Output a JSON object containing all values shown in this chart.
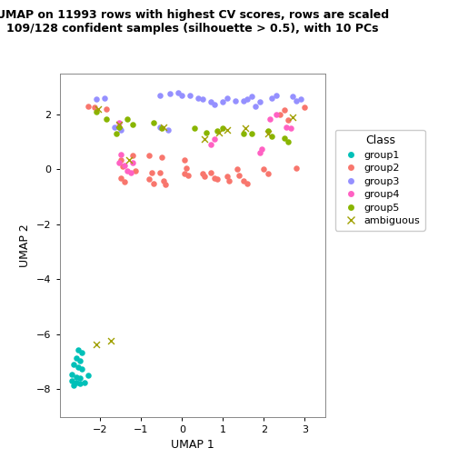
{
  "title": "UMAP on 11993 rows with highest CV scores, rows are scaled\n109/128 confident samples (silhouette > 0.5), with 10 PCs",
  "xlabel": "UMAP 1",
  "ylabel": "UMAP 2",
  "xlim": [
    -3.0,
    3.5
  ],
  "ylim": [
    -9.0,
    3.5
  ],
  "xticks": [
    -2,
    -1,
    0,
    1,
    2,
    3
  ],
  "yticks": [
    -8,
    -6,
    -4,
    -2,
    0,
    2
  ],
  "group_colors": {
    "group1": "#00C0B8",
    "group2": "#F8766D",
    "group3": "#9590FF",
    "group4": "#FF61C3",
    "group5": "#89B500",
    "ambiguous": "#A0A000"
  },
  "points": {
    "group1": [
      [
        -2.55,
        -6.55
      ],
      [
        -2.45,
        -6.65
      ],
      [
        -2.6,
        -6.85
      ],
      [
        -2.5,
        -6.95
      ],
      [
        -2.65,
        -7.1
      ],
      [
        -2.55,
        -7.2
      ],
      [
        -2.45,
        -7.25
      ],
      [
        -2.7,
        -7.45
      ],
      [
        -2.6,
        -7.55
      ],
      [
        -2.5,
        -7.6
      ],
      [
        -2.7,
        -7.7
      ],
      [
        -2.6,
        -7.75
      ],
      [
        -2.5,
        -7.8
      ],
      [
        -2.4,
        -7.75
      ],
      [
        -2.65,
        -7.85
      ],
      [
        -2.3,
        -7.5
      ]
    ],
    "group2": [
      [
        -2.3,
        2.3
      ],
      [
        -2.15,
        2.25
      ],
      [
        -1.85,
        2.2
      ],
      [
        -1.5,
        0.35
      ],
      [
        -1.45,
        0.1
      ],
      [
        -1.5,
        -0.3
      ],
      [
        -1.4,
        -0.45
      ],
      [
        -1.2,
        0.5
      ],
      [
        -1.15,
        -0.05
      ],
      [
        -0.8,
        0.5
      ],
      [
        -0.75,
        -0.1
      ],
      [
        -0.8,
        -0.35
      ],
      [
        -0.7,
        -0.5
      ],
      [
        -0.5,
        0.45
      ],
      [
        -0.55,
        -0.1
      ],
      [
        -0.45,
        -0.4
      ],
      [
        -0.4,
        -0.55
      ],
      [
        0.05,
        0.35
      ],
      [
        0.1,
        0.05
      ],
      [
        0.05,
        -0.15
      ],
      [
        0.15,
        -0.2
      ],
      [
        0.5,
        -0.15
      ],
      [
        0.55,
        -0.25
      ],
      [
        0.7,
        -0.1
      ],
      [
        0.8,
        -0.3
      ],
      [
        0.85,
        -0.35
      ],
      [
        1.1,
        -0.25
      ],
      [
        1.15,
        -0.4
      ],
      [
        1.35,
        0.0
      ],
      [
        1.4,
        -0.2
      ],
      [
        1.5,
        -0.4
      ],
      [
        1.6,
        -0.5
      ],
      [
        2.0,
        0.0
      ],
      [
        2.1,
        -0.15
      ],
      [
        2.4,
        2.0
      ],
      [
        2.5,
        2.15
      ],
      [
        2.6,
        1.8
      ],
      [
        2.8,
        0.05
      ],
      [
        3.0,
        2.25
      ]
    ],
    "group3": [
      [
        -2.1,
        2.55
      ],
      [
        -1.9,
        2.6
      ],
      [
        -0.55,
        2.7
      ],
      [
        -0.3,
        2.75
      ],
      [
        -0.1,
        2.8
      ],
      [
        0.0,
        2.7
      ],
      [
        0.2,
        2.7
      ],
      [
        0.4,
        2.6
      ],
      [
        0.5,
        2.55
      ],
      [
        0.7,
        2.45
      ],
      [
        0.8,
        2.35
      ],
      [
        1.0,
        2.45
      ],
      [
        1.1,
        2.6
      ],
      [
        1.3,
        2.5
      ],
      [
        1.5,
        2.5
      ],
      [
        1.6,
        2.55
      ],
      [
        1.7,
        2.65
      ],
      [
        1.8,
        2.3
      ],
      [
        1.9,
        2.45
      ],
      [
        2.2,
        2.6
      ],
      [
        2.3,
        2.7
      ],
      [
        2.7,
        2.65
      ],
      [
        2.8,
        2.5
      ],
      [
        2.9,
        2.55
      ],
      [
        -0.55,
        1.55
      ],
      [
        -0.35,
        1.45
      ],
      [
        -1.65,
        1.55
      ],
      [
        -1.5,
        1.45
      ]
    ],
    "group4": [
      [
        -1.55,
        1.7
      ],
      [
        -1.5,
        0.55
      ],
      [
        -1.55,
        0.25
      ],
      [
        -1.4,
        0.15
      ],
      [
        -1.35,
        -0.05
      ],
      [
        2.3,
        2.0
      ],
      [
        2.15,
        1.85
      ],
      [
        2.55,
        1.55
      ],
      [
        2.65,
        1.5
      ],
      [
        1.9,
        0.6
      ],
      [
        1.95,
        0.75
      ],
      [
        0.8,
        1.1
      ],
      [
        0.7,
        0.9
      ],
      [
        -1.2,
        0.25
      ],
      [
        -1.25,
        -0.1
      ]
    ],
    "group5": [
      [
        -2.1,
        2.1
      ],
      [
        -1.85,
        1.85
      ],
      [
        -1.55,
        1.55
      ],
      [
        -1.6,
        1.3
      ],
      [
        -1.35,
        1.85
      ],
      [
        -1.2,
        1.65
      ],
      [
        -0.7,
        1.7
      ],
      [
        -0.5,
        1.5
      ],
      [
        0.3,
        1.5
      ],
      [
        0.6,
        1.35
      ],
      [
        0.85,
        1.4
      ],
      [
        1.0,
        1.5
      ],
      [
        1.5,
        1.3
      ],
      [
        1.7,
        1.3
      ],
      [
        2.1,
        1.4
      ],
      [
        2.2,
        1.2
      ],
      [
        2.5,
        1.15
      ],
      [
        2.6,
        1.0
      ]
    ],
    "ambiguous": [
      [
        -2.05,
        2.2
      ],
      [
        -1.55,
        1.65
      ],
      [
        -1.3,
        0.35
      ],
      [
        -0.45,
        1.55
      ],
      [
        0.55,
        1.1
      ],
      [
        0.9,
        1.35
      ],
      [
        1.1,
        1.45
      ],
      [
        1.55,
        1.5
      ],
      [
        2.1,
        1.3
      ],
      [
        -2.1,
        -6.35
      ],
      [
        -1.75,
        -6.25
      ],
      [
        2.7,
        1.9
      ]
    ]
  },
  "legend_title": "Class",
  "legend_labels": [
    "group1",
    "group2",
    "group3",
    "group4",
    "group5",
    "ambiguous"
  ]
}
